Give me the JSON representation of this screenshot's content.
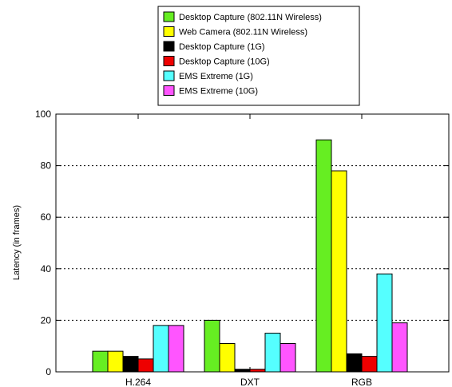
{
  "chart_data": {
    "type": "bar",
    "title": "",
    "xlabel": "",
    "ylabel": "Latency (in frames)",
    "ylim": [
      0,
      100
    ],
    "yticks": [
      0,
      20,
      40,
      60,
      80,
      100
    ],
    "grid": "horizontal dotted",
    "legend_position": "top",
    "categories": [
      "H.264",
      "DXT",
      "RGB"
    ],
    "series": [
      {
        "name": "Desktop Capture (802.11N Wireless)",
        "color": "#66ee22",
        "values": [
          8,
          20,
          90
        ]
      },
      {
        "name": "Web Camera (802.11N Wireless)",
        "color": "#ffff00",
        "values": [
          8,
          11,
          78
        ]
      },
      {
        "name": "Desktop Capture (1G)",
        "color": "#000000",
        "values": [
          6,
          1,
          7
        ]
      },
      {
        "name": "Desktop Capture (10G)",
        "color": "#ee0000",
        "values": [
          5,
          1,
          6
        ]
      },
      {
        "name": "EMS Extreme (1G)",
        "color": "#55ffff",
        "values": [
          18,
          15,
          38
        ]
      },
      {
        "name": "EMS Extreme (10G)",
        "color": "#ff55ff",
        "values": [
          18,
          11,
          19
        ]
      }
    ]
  }
}
